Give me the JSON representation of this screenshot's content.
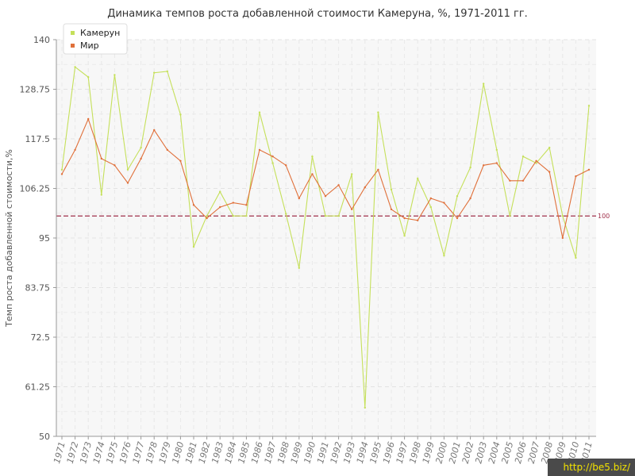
{
  "chart_data": {
    "type": "line",
    "title": "Динамика темпов роста добавленной стоимости Камеруна, %, 1971-2011 гг.",
    "xlabel": "",
    "ylabel": "Темп роста добавленной стоимости,%",
    "ylim": [
      50,
      140
    ],
    "yticks": [
      "140",
      "128.75",
      "117.5",
      "106.25",
      "95",
      "83.75",
      "72.5",
      "61.25",
      "50"
    ],
    "x": [
      "1971",
      "1972",
      "1973",
      "1974",
      "1975",
      "1976",
      "1977",
      "1978",
      "1979",
      "1980",
      "1981",
      "1982",
      "1983",
      "1984",
      "1985",
      "1986",
      "1987",
      "1988",
      "1989",
      "1990",
      "1991",
      "1992",
      "1993",
      "1994",
      "1995",
      "1996",
      "1997",
      "1998",
      "1999",
      "2000",
      "2001",
      "2002",
      "2003",
      "2004",
      "2005",
      "2006",
      "2007",
      "2008",
      "2009",
      "2010",
      "2011"
    ],
    "series": [
      {
        "name": "Камерун",
        "color": "#c5e05a",
        "values": [
          110.5,
          133.8,
          131.5,
          104.8,
          132,
          110.5,
          115.5,
          132.5,
          132.8,
          123,
          93,
          100,
          105.5,
          100,
          100,
          123.5,
          112,
          100.5,
          88.2,
          113.5,
          100,
          100,
          109.5,
          56.5,
          123.5,
          106,
          95.5,
          108.5,
          102,
          91,
          104.5,
          111,
          130,
          115,
          100,
          113.5,
          112,
          115.5,
          100,
          90.5,
          125
        ],
        "point_labels": [
          "",
          "",
          "",
          "",
          "",
          "",
          "",
          "",
          "",
          "",
          "",
          "",
          "",
          "",
          "",
          "",
          "",
          "",
          "",
          "",
          "",
          "",
          "",
          "",
          "",
          "",
          "",
          "",
          "",
          "",
          "",
          "",
          "",
          "",
          "",
          "",
          "",
          "",
          "",
          "",
          ""
        ]
      },
      {
        "name": "Мир",
        "color": "#e0703a",
        "values": [
          109.5,
          115,
          122,
          113,
          111.5,
          107.5,
          113,
          119.5,
          115,
          112.5,
          102.5,
          99.5,
          102,
          103,
          102.5,
          115,
          113.5,
          111.5,
          104,
          109.5,
          104.5,
          107,
          101.5,
          106.5,
          110.5,
          101.5,
          99.5,
          99,
          104,
          103,
          99.5,
          104,
          111.5,
          112,
          108,
          108,
          112.5,
          110,
          95,
          109,
          110.5
        ],
        "point_labels": [
          "",
          "",
          "",
          "",
          "",
          "",
          "",
          "",
          "",
          "",
          "",
          "",
          "",
          "",
          "",
          "",
          "",
          "",
          "",
          "",
          "",
          "",
          "",
          "",
          "",
          "",
          "",
          "",
          "",
          "",
          "",
          "",
          "",
          "",
          "",
          "",
          "",
          "",
          "",
          "",
          ""
        ]
      }
    ],
    "reference_line": {
      "value": 100,
      "label": "100",
      "color": "#a0304a",
      "style": "dashed"
    },
    "grid": true,
    "legend_position": "top-left"
  },
  "watermark": "http://be5.biz/"
}
